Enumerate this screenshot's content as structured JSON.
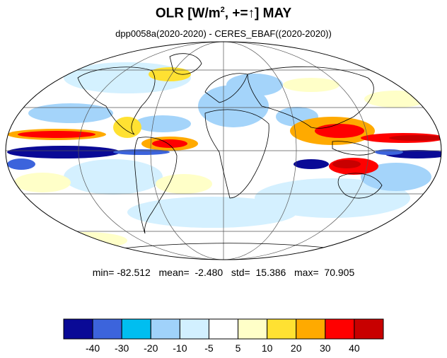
{
  "title": {
    "prefix": "OLR [W/m",
    "superscript": "2",
    "suffix": ", +=↑] MAY"
  },
  "subtitle": "dpp0058a(2020-2020) - CERES_EBAF((2020-2020))",
  "stats": {
    "min_label": "min=",
    "min": "-82.512",
    "mean_label": "mean=",
    "mean": "-2.480",
    "std_label": "std=",
    "std": "15.386",
    "max_label": "max=",
    "max": "70.905"
  },
  "colorbar": {
    "colors": [
      "#0a0a96",
      "#3c64dc",
      "#00bef0",
      "#a0d2fa",
      "#d2f0ff",
      "#ffffff",
      "#ffffc8",
      "#ffe132",
      "#ffaa00",
      "#ff0000",
      "#c80000"
    ],
    "labels": [
      "-40",
      "-30",
      "-20",
      "-10",
      "-5",
      "5",
      "10",
      "20",
      "30",
      "40"
    ]
  },
  "map": {
    "projection": "Mollweide",
    "graticule": "30° latitude / 60° longitude",
    "field": "OLR difference (model minus observation)"
  }
}
